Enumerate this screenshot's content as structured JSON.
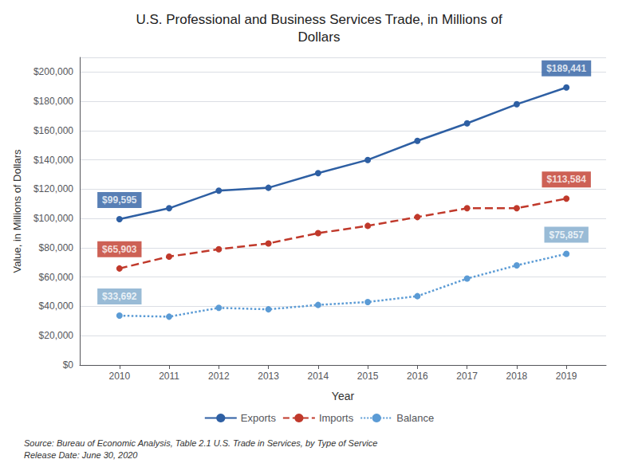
{
  "chart_data": {
    "type": "line",
    "title": "U.S. Professional and Business Services Trade, in Millions of\nDollars",
    "xlabel": "Year",
    "ylabel": "Value, in Millions of Dollars",
    "x": [
      2010,
      2011,
      2012,
      2013,
      2014,
      2015,
      2016,
      2017,
      2018,
      2019
    ],
    "series": [
      {
        "name": "Exports",
        "color": "#2E5FA3",
        "line_style": "solid",
        "marker": "circle",
        "values": [
          99595,
          107000,
          119000,
          121000,
          131000,
          140000,
          153000,
          165000,
          178000,
          189441
        ]
      },
      {
        "name": "Imports",
        "color": "#C0392B",
        "line_style": "dashed",
        "marker": "circle",
        "values": [
          65903,
          74000,
          79000,
          83000,
          90000,
          95000,
          101000,
          107000,
          107000,
          113584
        ]
      },
      {
        "name": "Balance",
        "color": "#5B9BD5",
        "line_style": "dotted",
        "marker": "circle",
        "values": [
          33692,
          33000,
          39000,
          38000,
          41000,
          43000,
          47000,
          59000,
          68000,
          75857
        ]
      }
    ],
    "xlim": [
      2009.2,
      2019.8
    ],
    "xticks": [
      2010,
      2011,
      2012,
      2013,
      2014,
      2015,
      2016,
      2017,
      2018,
      2019
    ],
    "ylim": [
      0,
      210000
    ],
    "yticks": [
      {
        "value": 0,
        "label": "$0"
      },
      {
        "value": 20000,
        "label": "$20,000"
      },
      {
        "value": 40000,
        "label": "$40,000"
      },
      {
        "value": 60000,
        "label": "$60,000"
      },
      {
        "value": 80000,
        "label": "$80,000"
      },
      {
        "value": 100000,
        "label": "$100,000"
      },
      {
        "value": 120000,
        "label": "$120,000"
      },
      {
        "value": 140000,
        "label": "$140,000"
      },
      {
        "value": 160000,
        "label": "$160,000"
      },
      {
        "value": 180000,
        "label": "$180,000"
      },
      {
        "value": 200000,
        "label": "$200,000"
      }
    ],
    "grid": true,
    "legend": "bottom",
    "annotations": [
      {
        "text": "$99,595",
        "x": 2010,
        "y": 99595,
        "color": "#2E5FA3"
      },
      {
        "text": "$65,903",
        "x": 2010,
        "y": 65903,
        "color": "#C0392B"
      },
      {
        "text": "$33,692",
        "x": 2010,
        "y": 33692,
        "color": "#7FAACC"
      },
      {
        "text": "$189,441",
        "x": 2019,
        "y": 189441,
        "color": "#2E5FA3"
      },
      {
        "text": "$113,584",
        "x": 2019,
        "y": 113584,
        "color": "#C0392B"
      },
      {
        "text": "$75,857",
        "x": 2019,
        "y": 75857,
        "color": "#7FAACC"
      }
    ],
    "source": "Source: Bureau of Economic Analysis, Table 2.1 U.S. Trade in Services, by Type of Service\nRelease Date: June 30, 2020"
  }
}
